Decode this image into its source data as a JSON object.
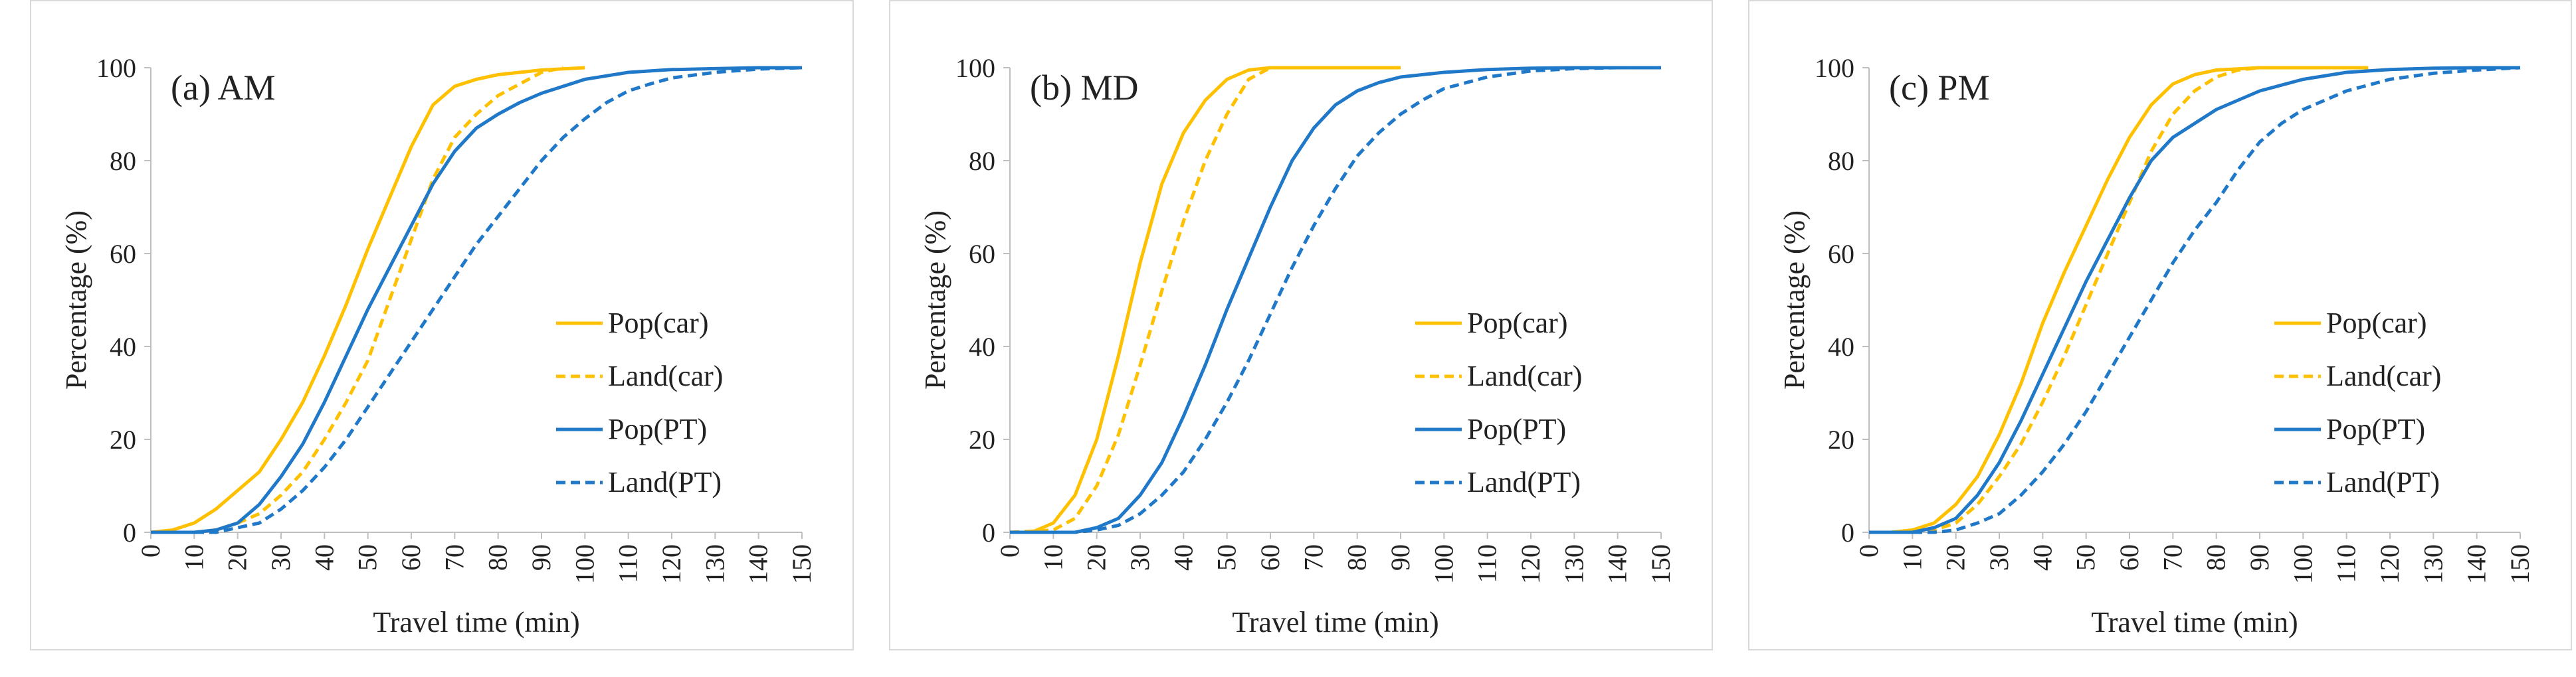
{
  "chart_data": [
    {
      "type": "line",
      "title": "(a) AM",
      "xlabel": "Travel time (min)",
      "ylabel": "Percentage (%)",
      "xlim": [
        0,
        150
      ],
      "ylim": [
        0,
        100
      ],
      "x_ticks": [
        0,
        10,
        20,
        30,
        40,
        50,
        60,
        70,
        80,
        90,
        100,
        110,
        120,
        130,
        140,
        150
      ],
      "y_ticks": [
        0,
        20,
        40,
        60,
        80,
        100
      ],
      "grid": false,
      "legend_position": "center-right",
      "series": [
        {
          "name": "Pop(car)",
          "color": "#FFC000",
          "dash": "solid",
          "x": [
            0,
            5,
            10,
            15,
            20,
            25,
            30,
            35,
            40,
            45,
            50,
            55,
            60,
            65,
            70,
            75,
            80,
            90,
            100
          ],
          "y": [
            0,
            0.5,
            2,
            5,
            9,
            13,
            20,
            28,
            38,
            49,
            61,
            72,
            83,
            92,
            96,
            97.5,
            98.5,
            99.5,
            100
          ]
        },
        {
          "name": "Land(car)",
          "color": "#FFC000",
          "dash": "dashed",
          "x": [
            0,
            10,
            15,
            20,
            25,
            30,
            35,
            40,
            45,
            50,
            55,
            60,
            65,
            70,
            75,
            80,
            85,
            90,
            95
          ],
          "y": [
            0,
            0,
            0.5,
            2,
            4,
            8,
            13,
            20,
            28,
            37,
            50,
            63,
            76,
            85,
            90,
            94,
            96.5,
            99,
            100
          ]
        },
        {
          "name": "Pop(PT)",
          "color": "#1F78C8",
          "dash": "solid",
          "x": [
            0,
            10,
            15,
            20,
            25,
            30,
            35,
            40,
            45,
            50,
            55,
            60,
            65,
            70,
            75,
            80,
            85,
            90,
            95,
            100,
            110,
            120,
            130,
            140,
            150
          ],
          "y": [
            0,
            0,
            0.5,
            2,
            6,
            12,
            19,
            28,
            38,
            48,
            57,
            66,
            75,
            82,
            87,
            90,
            92.5,
            94.5,
            96,
            97.5,
            99,
            99.6,
            99.8,
            100,
            100
          ]
        },
        {
          "name": "Land(PT)",
          "color": "#1F78C8",
          "dash": "dashed",
          "x": [
            0,
            15,
            20,
            25,
            30,
            35,
            40,
            45,
            50,
            55,
            60,
            65,
            70,
            75,
            80,
            85,
            90,
            95,
            100,
            105,
            110,
            115,
            120,
            130,
            140,
            150
          ],
          "y": [
            0,
            0,
            1,
            2,
            5,
            9,
            14,
            20,
            27,
            34,
            41,
            48,
            55,
            62,
            68,
            74,
            80,
            85,
            89,
            92.5,
            95,
            96.5,
            97.8,
            99,
            99.7,
            100
          ]
        }
      ]
    },
    {
      "type": "line",
      "title": "(b) MD",
      "xlabel": "Travel time (min)",
      "ylabel": "Percentage (%)",
      "xlim": [
        0,
        150
      ],
      "ylim": [
        0,
        100
      ],
      "x_ticks": [
        0,
        10,
        20,
        30,
        40,
        50,
        60,
        70,
        80,
        90,
        100,
        110,
        120,
        130,
        140,
        150
      ],
      "y_ticks": [
        0,
        20,
        40,
        60,
        80,
        100
      ],
      "grid": false,
      "legend_position": "center-right",
      "series": [
        {
          "name": "Pop(car)",
          "color": "#FFC000",
          "dash": "solid",
          "x": [
            0,
            5,
            10,
            15,
            20,
            25,
            30,
            35,
            40,
            45,
            50,
            55,
            60,
            70,
            80,
            90
          ],
          "y": [
            0,
            0,
            2,
            8,
            20,
            38,
            58,
            75,
            86,
            93,
            97.5,
            99.5,
            100,
            100,
            100,
            100
          ]
        },
        {
          "name": "Land(car)",
          "color": "#FFC000",
          "dash": "dashed",
          "x": [
            0,
            10,
            15,
            20,
            25,
            30,
            35,
            40,
            45,
            50,
            55,
            60
          ],
          "y": [
            0,
            0.5,
            3,
            10,
            21,
            36,
            52,
            67,
            80,
            90,
            97.5,
            100
          ]
        },
        {
          "name": "Pop(PT)",
          "color": "#1F78C8",
          "dash": "solid",
          "x": [
            0,
            15,
            20,
            25,
            30,
            35,
            40,
            45,
            50,
            55,
            60,
            65,
            70,
            75,
            80,
            85,
            90,
            100,
            110,
            120,
            130,
            140,
            150
          ],
          "y": [
            0,
            0,
            1,
            3,
            8,
            15,
            25,
            36,
            48,
            59,
            70,
            80,
            87,
            92,
            95,
            96.8,
            98,
            99,
            99.6,
            99.9,
            100,
            100,
            100
          ]
        },
        {
          "name": "Land(PT)",
          "color": "#1F78C8",
          "dash": "dashed",
          "x": [
            0,
            15,
            20,
            25,
            30,
            35,
            40,
            45,
            50,
            55,
            60,
            65,
            70,
            75,
            80,
            85,
            90,
            95,
            100,
            110,
            120,
            130,
            140,
            150
          ],
          "y": [
            0,
            0,
            0.5,
            1.5,
            4,
            8,
            13,
            20,
            28,
            37,
            47,
            57,
            66,
            74,
            81,
            86,
            90,
            93,
            95.5,
            98,
            99.3,
            99.8,
            100,
            100
          ]
        }
      ]
    },
    {
      "type": "line",
      "title": "(c) PM",
      "xlabel": "Travel time (min)",
      "ylabel": "Percentage (%)",
      "xlim": [
        0,
        150
      ],
      "ylim": [
        0,
        100
      ],
      "x_ticks": [
        0,
        10,
        20,
        30,
        40,
        50,
        60,
        70,
        80,
        90,
        100,
        110,
        120,
        130,
        140,
        150
      ],
      "y_ticks": [
        0,
        20,
        40,
        60,
        80,
        100
      ],
      "grid": false,
      "legend_position": "center-right",
      "series": [
        {
          "name": "Pop(car)",
          "color": "#FFC000",
          "dash": "solid",
          "x": [
            0,
            5,
            10,
            15,
            20,
            25,
            30,
            35,
            40,
            45,
            50,
            55,
            60,
            65,
            70,
            75,
            80,
            90,
            100,
            115
          ],
          "y": [
            0,
            0,
            0.5,
            2,
            6,
            12,
            21,
            32,
            45,
            56,
            66,
            76,
            85,
            92,
            96.5,
            98.5,
            99.5,
            100,
            100,
            100
          ]
        },
        {
          "name": "Land(car)",
          "color": "#FFC000",
          "dash": "dashed",
          "x": [
            0,
            10,
            15,
            20,
            25,
            30,
            35,
            40,
            45,
            50,
            55,
            60,
            65,
            70,
            75,
            80,
            85,
            90
          ],
          "y": [
            0,
            0,
            0.5,
            2,
            6,
            12,
            19,
            28,
            38,
            49,
            60,
            71,
            82,
            90,
            95,
            98,
            99.5,
            100
          ]
        },
        {
          "name": "Pop(PT)",
          "color": "#1F78C8",
          "dash": "solid",
          "x": [
            0,
            10,
            15,
            20,
            25,
            30,
            35,
            40,
            45,
            50,
            55,
            60,
            65,
            70,
            75,
            80,
            90,
            100,
            110,
            120,
            130,
            140,
            150
          ],
          "y": [
            0,
            0,
            1,
            3,
            8,
            15,
            24,
            34,
            44,
            54,
            63,
            72,
            80,
            85,
            88,
            91,
            95,
            97.5,
            99,
            99.6,
            99.9,
            100,
            100
          ]
        },
        {
          "name": "Land(PT)",
          "color": "#1F78C8",
          "dash": "dashed",
          "x": [
            0,
            15,
            20,
            25,
            30,
            35,
            40,
            45,
            50,
            55,
            60,
            65,
            70,
            75,
            80,
            85,
            90,
            95,
            100,
            110,
            120,
            130,
            140,
            150
          ],
          "y": [
            0,
            0,
            0.5,
            2,
            4,
            8,
            13,
            19,
            26,
            34,
            42,
            50,
            58,
            65,
            71,
            78,
            84,
            88,
            91,
            95,
            97.5,
            98.8,
            99.5,
            100
          ]
        }
      ]
    }
  ]
}
